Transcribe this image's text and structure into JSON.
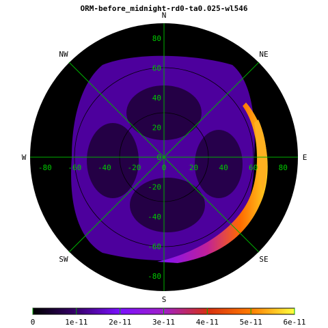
{
  "chart_data": {
    "type": "heatmap",
    "title": "ORM-before_midnight-rd0-ta0.025-wl546",
    "projection": "polar",
    "directions": {
      "n": "N",
      "s": "S",
      "e": "E",
      "w": "W",
      "ne": "NE",
      "nw": "NW",
      "se": "SE",
      "sw": "SW"
    },
    "axis": {
      "range": [
        -90,
        90
      ],
      "ticks": [
        "-80",
        "-60",
        "-40",
        "-20",
        "0",
        "20",
        "40",
        "60",
        "80"
      ]
    },
    "colorbar": {
      "min": 0,
      "max": 6e-11,
      "ticks": [
        "0",
        "1e-11",
        "2e-11",
        "3e-11",
        "4e-11",
        "5e-11",
        "6e-11"
      ],
      "colors": [
        "#000000",
        "#3a0070",
        "#7a10ff",
        "#a020c8",
        "#d83010",
        "#ff7a00",
        "#ffff40"
      ]
    },
    "grid": true,
    "colors": {
      "background": "#000000",
      "grid_lines": "#00b000",
      "tick_labels": "#00cc00",
      "contour": "#000000",
      "text": "#000000"
    }
  }
}
